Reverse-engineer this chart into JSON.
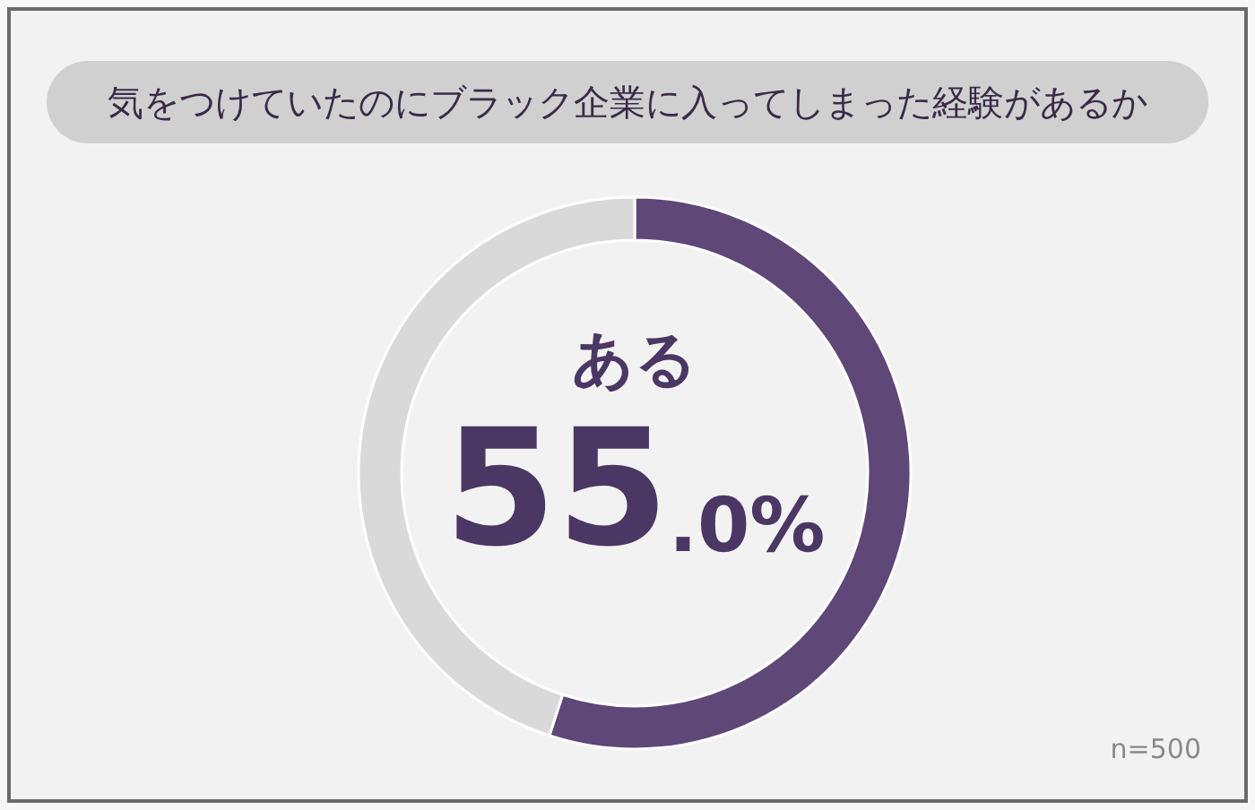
{
  "chart_data": {
    "type": "donut",
    "title": "気をつけていたのにブラック企業に入ってしまった経験があるか",
    "categories": [
      "ある",
      null
    ],
    "values": [
      55.0,
      45.0
    ],
    "colors": [
      "#5f4777",
      "#d9d9d9"
    ],
    "value_labels": [
      "55.0%",
      null
    ],
    "annotations": [
      "n=500"
    ]
  }
}
